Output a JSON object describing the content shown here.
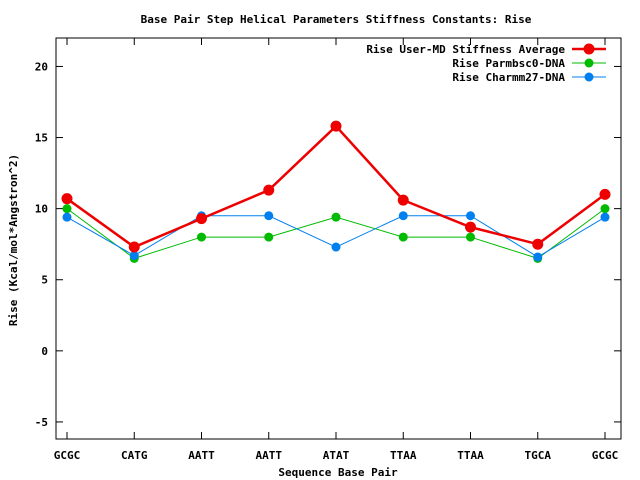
{
  "chart_data": {
    "type": "line",
    "title": "Base Pair Step Helical Parameters Stiffness Constants: Rise",
    "xlabel": "Sequence Base Pair",
    "ylabel": "Rise (Kcal/mol*Angstron^2)",
    "categories": [
      "GCGC",
      "CATG",
      "AATT",
      "AATT",
      "ATAT",
      "TTAA",
      "TTAA",
      "TGCA",
      "GCGC"
    ],
    "ylim": [
      -6.2,
      22
    ],
    "yticks": [
      -5,
      0,
      5,
      10,
      15,
      20
    ],
    "grid": false,
    "legend_position": "top-right",
    "series": [
      {
        "name": "Rise User-MD Stiffness Average",
        "color": "#ee0000",
        "emphasis": "thick",
        "values": [
          10.7,
          7.3,
          9.3,
          11.3,
          15.8,
          10.6,
          8.7,
          7.5,
          11.0
        ]
      },
      {
        "name": "Rise Parmbsc0-DNA",
        "color": "#00bb00",
        "emphasis": "thin",
        "values": [
          10.0,
          6.5,
          8.0,
          8.0,
          9.4,
          8.0,
          8.0,
          6.5,
          10.0
        ]
      },
      {
        "name": "Rise Charmm27-DNA",
        "color": "#0080ee",
        "emphasis": "thin",
        "values": [
          9.4,
          6.7,
          9.5,
          9.5,
          7.3,
          9.5,
          9.5,
          6.6,
          9.4
        ]
      }
    ]
  }
}
